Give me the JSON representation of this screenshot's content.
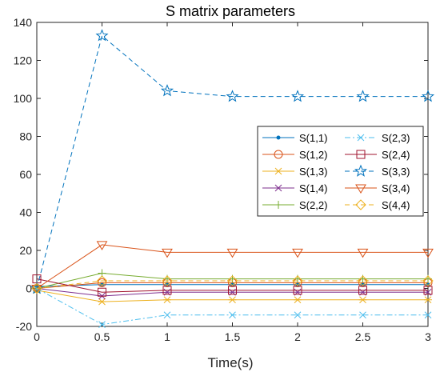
{
  "chart_data": {
    "type": "line",
    "title": "S matrix parameters",
    "xlabel": "Time(s)",
    "ylabel": "",
    "xlim": [
      0,
      3
    ],
    "ylim": [
      -20,
      140
    ],
    "xticks": [
      0,
      0.5,
      1,
      1.5,
      2,
      2.5,
      3
    ],
    "yticks": [
      -20,
      0,
      20,
      40,
      60,
      80,
      100,
      120,
      140
    ],
    "xtick_labels": [
      "0",
      "0.5",
      "1",
      "1.5",
      "2",
      "2.5",
      "3"
    ],
    "ytick_labels": [
      "-20",
      "0",
      "20",
      "40",
      "60",
      "80",
      "100",
      "120",
      "140"
    ],
    "grid": false,
    "legend_position": "right",
    "x": [
      0,
      0.5,
      1,
      1.5,
      2,
      2.5,
      3
    ],
    "series": [
      {
        "name": "S(1,1)",
        "color": "#0072BD",
        "dash": "solid",
        "marker": "point",
        "values": [
          1,
          2,
          2,
          2,
          2,
          2,
          2
        ]
      },
      {
        "name": "S(1,2)",
        "color": "#D95319",
        "dash": "solid",
        "marker": "circle",
        "values": [
          0,
          3,
          3,
          3,
          3,
          3,
          3
        ]
      },
      {
        "name": "S(1,3)",
        "color": "#EDB120",
        "dash": "solid",
        "marker": "asterisk",
        "values": [
          -1,
          -7,
          -6,
          -6,
          -6,
          -6,
          -6
        ]
      },
      {
        "name": "S(1,4)",
        "color": "#7E2F8E",
        "dash": "solid",
        "marker": "x",
        "values": [
          0,
          -4,
          -2,
          -2,
          -2,
          -2,
          -2
        ]
      },
      {
        "name": "S(2,2)",
        "color": "#77AC30",
        "dash": "solid",
        "marker": "plus",
        "values": [
          0,
          8,
          5,
          5,
          5,
          5,
          5
        ]
      },
      {
        "name": "S(2,3)",
        "color": "#4DBEEE",
        "dash": "dashdot",
        "marker": "x",
        "values": [
          0,
          -19,
          -14,
          -14,
          -14,
          -14,
          -14
        ]
      },
      {
        "name": "S(2,4)",
        "color": "#A2142F",
        "dash": "solid",
        "marker": "square",
        "values": [
          5,
          -2,
          -1,
          -1,
          -1,
          -1,
          -1
        ]
      },
      {
        "name": "S(3,3)",
        "color": "#0072BD",
        "dash": "dash",
        "marker": "pentagram",
        "values": [
          0,
          133,
          104,
          101,
          101,
          101,
          101
        ]
      },
      {
        "name": "S(3,4)",
        "color": "#D95319",
        "dash": "solid",
        "marker": "triangle-down",
        "values": [
          0,
          23,
          19,
          19,
          19,
          19,
          19
        ]
      },
      {
        "name": "S(4,4)",
        "color": "#EDB120",
        "dash": "dash",
        "marker": "diamond",
        "values": [
          0,
          4,
          4,
          4,
          4,
          4,
          4
        ]
      }
    ]
  }
}
